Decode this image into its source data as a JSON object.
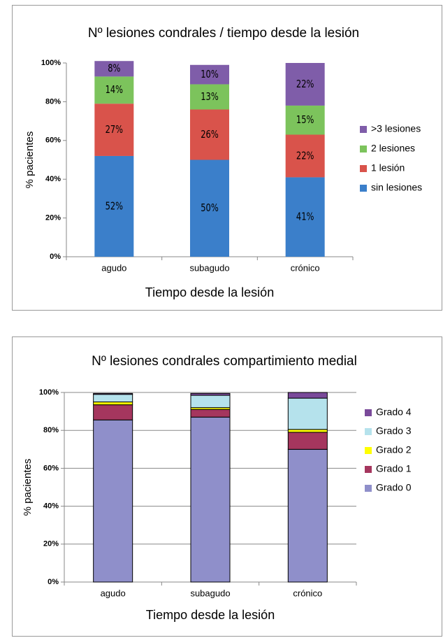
{
  "chart_data": [
    {
      "type": "stacked_bar",
      "title": "Nº lesiones condrales / tiempo desde la lesión",
      "x_label": "Tiempo desde la lesión",
      "y_label": "% pacientes",
      "categories": [
        "agudo",
        "subagudo",
        "crónico"
      ],
      "series": [
        {
          "name": "sin lesiones",
          "color": "#3b7fca",
          "values": [
            52,
            50,
            41
          ],
          "value_labels": [
            "52%",
            "50%",
            "41%"
          ]
        },
        {
          "name": "1 lesión",
          "color": "#d9534b",
          "values": [
            27,
            26,
            22
          ],
          "value_labels": [
            "27%",
            "26%",
            "22%"
          ]
        },
        {
          "name": "2 lesiones",
          "color": "#7cc35c",
          "values": [
            14,
            13,
            15
          ],
          "value_labels": [
            "14%",
            "13%",
            "15%"
          ]
        },
        {
          "name": ">3 lesiones",
          "color": "#7f5da9",
          "values": [
            8,
            10,
            22
          ],
          "value_labels": [
            "8%",
            "10%",
            "22%"
          ]
        }
      ],
      "ylim": [
        0,
        100
      ],
      "yticks": [
        {
          "value": 0,
          "label": "0%"
        },
        {
          "value": 20,
          "label": "20%"
        },
        {
          "value": 40,
          "label": "40%"
        },
        {
          "value": 60,
          "label": "60%"
        },
        {
          "value": 80,
          "label": "80%"
        },
        {
          "value": 100,
          "label": "100%"
        }
      ],
      "grid": false
    },
    {
      "type": "stacked_bar",
      "title": "Nº lesiones condrales compartimiento medial",
      "x_label": "Tiempo desde la lesión",
      "y_label": "% pacientes",
      "categories": [
        "agudo",
        "subagudo",
        "crónico"
      ],
      "series": [
        {
          "name": "Grado 0",
          "color": "#8f8fca",
          "values": [
            85.5,
            87,
            70
          ]
        },
        {
          "name": "Grado 1",
          "color": "#a5365e",
          "values": [
            8,
            4,
            9
          ]
        },
        {
          "name": "Grado 2",
          "color": "#ffff00",
          "values": [
            1.5,
            1,
            1.5
          ]
        },
        {
          "name": "Grado 3",
          "color": "#b5e2ec",
          "values": [
            4,
            6.5,
            16.5
          ]
        },
        {
          "name": "Grado 4",
          "color": "#7a4a9a",
          "values": [
            0.5,
            1,
            3
          ]
        }
      ],
      "ylim": [
        0,
        100
      ],
      "yticks": [
        {
          "value": 0,
          "label": "0%"
        },
        {
          "value": 20,
          "label": "20%"
        },
        {
          "value": 40,
          "label": "40%"
        },
        {
          "value": 60,
          "label": "60%"
        },
        {
          "value": 80,
          "label": "80%"
        },
        {
          "value": 100,
          "label": "100%"
        }
      ],
      "grid": true
    }
  ]
}
